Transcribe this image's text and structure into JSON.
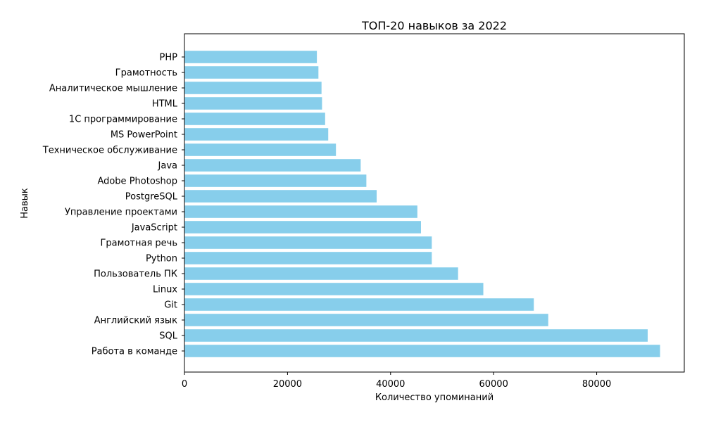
{
  "chart_data": {
    "type": "bar",
    "orientation": "horizontal",
    "title": "ТОП-20 навыков за 2022",
    "xlabel": "Количество упоминаний",
    "ylabel": "Навык",
    "xlim": [
      0,
      97000
    ],
    "xticks": [
      0,
      20000,
      40000,
      60000,
      80000
    ],
    "grid": false,
    "legend": "none",
    "bar_color": "#87ceeb",
    "categories": [
      "Работа в команде",
      "SQL",
      "Английский язык",
      "Git",
      "Linux",
      "Пользователь ПК",
      "Python",
      "Грамотная речь",
      "JavaScript",
      "Управление проектами",
      "PostgreSQL",
      "Adobe Photoshop",
      "Java",
      "Техническое обслуживание",
      "MS PowerPoint",
      "1С программирование",
      "HTML",
      "Аналитическое мышление",
      "Грамотность",
      "PHP"
    ],
    "values": [
      92300,
      89900,
      70600,
      67800,
      58000,
      53100,
      48000,
      48000,
      45900,
      45200,
      37300,
      35300,
      34200,
      29400,
      27900,
      27300,
      26700,
      26600,
      26000,
      25700
    ]
  }
}
